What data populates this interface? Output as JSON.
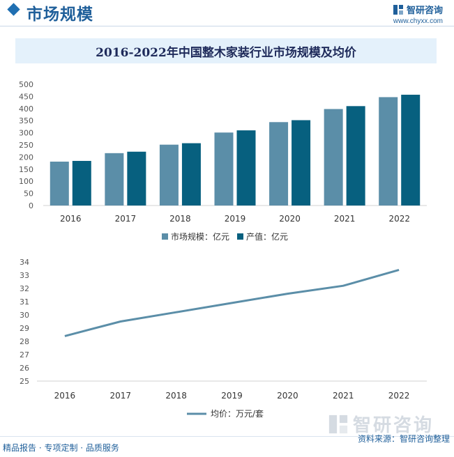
{
  "header": {
    "section_title": "市场规模",
    "brand_name": "智研咨询",
    "brand_url": "www.chyxx.com",
    "logo_icon": "zhiyan-logo-icon"
  },
  "colors": {
    "bar_market": "#5b8ea8",
    "bar_output": "#07607f",
    "line_price": "#5b8ea8",
    "title_bg": "#e4f1fb",
    "brand": "#1f5f9a"
  },
  "chart_data": [
    {
      "type": "bar",
      "title": "2016-2022年中国整木家装行业市场规模及均价",
      "categories": [
        "2016",
        "2017",
        "2018",
        "2019",
        "2020",
        "2021",
        "2022"
      ],
      "series": [
        {
          "name": "市场规模：亿元",
          "values": [
            181,
            216,
            251,
            301,
            344,
            398,
            447
          ]
        },
        {
          "name": "产值：亿元",
          "values": [
            184,
            222,
            257,
            310,
            352,
            410,
            457
          ]
        }
      ],
      "ylim": [
        0,
        500
      ],
      "yticks": [
        "0",
        "50",
        "100",
        "150",
        "200",
        "250",
        "300",
        "350",
        "400",
        "450",
        "500"
      ],
      "grid": false,
      "legend": "bottom"
    },
    {
      "type": "line",
      "categories": [
        "2016",
        "2017",
        "2018",
        "2019",
        "2020",
        "2021",
        "2022"
      ],
      "series": [
        {
          "name": "均价：万元/套",
          "values": [
            28.4,
            29.5,
            30.2,
            30.9,
            31.6,
            32.2,
            33.4
          ]
        }
      ],
      "ylim": [
        25,
        34
      ],
      "yticks": [
        "25",
        "26",
        "27",
        "28",
        "29",
        "30",
        "31",
        "32",
        "33",
        "34"
      ],
      "grid": false,
      "legend": "bottom"
    }
  ],
  "watermark": {
    "text": "智研咨询"
  },
  "footer": {
    "services": "精品报告 · 专项定制 · 品质服务",
    "source": "资料来源：智研咨询整理"
  }
}
